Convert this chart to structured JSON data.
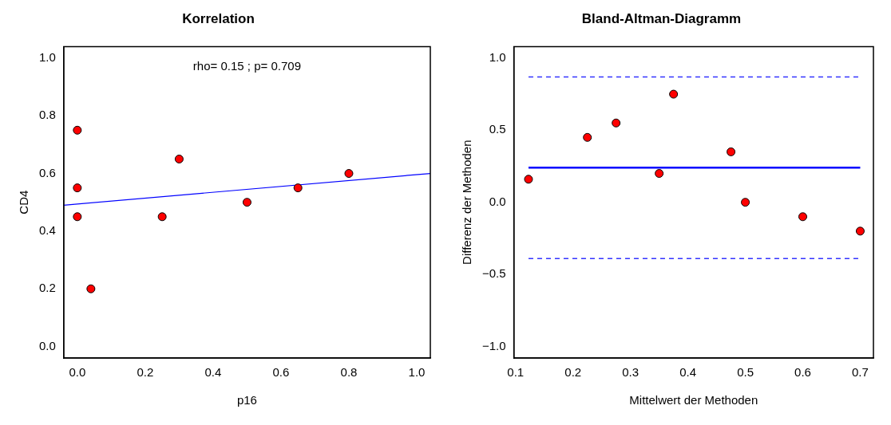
{
  "chart_data": [
    {
      "type": "scatter",
      "title": "Korrelation",
      "xlabel": "p16",
      "ylabel": "CD4",
      "annotations": [
        "rho= 0.15 ; p= 0.709"
      ],
      "xlim": [
        -0.04,
        1.04
      ],
      "ylim": [
        -0.04,
        1.04
      ],
      "xticks": [
        {
          "value": 0,
          "label": "0.0"
        },
        0.2,
        0.4,
        0.6,
        0.8,
        {
          "value": 1,
          "label": "1.0"
        }
      ],
      "yticks": [
        {
          "value": 0,
          "label": "0.0"
        },
        0.2,
        0.4,
        0.6,
        0.8,
        {
          "value": 1,
          "label": "1.0"
        }
      ],
      "grid": false,
      "series": [
        {
          "marker": "circle",
          "color": "#ff0000",
          "x": [
            0,
            0,
            0,
            0.04,
            0.25,
            0.3,
            0.5,
            0.65,
            0.8
          ],
          "values": [
            0.75,
            0.55,
            0.45,
            0.2,
            0.45,
            0.65,
            0.5,
            0.55,
            0.6
          ]
        },
        {
          "type": "line",
          "color": "#0000ff",
          "x": [
            -0.04,
            1.04
          ],
          "values": [
            0.49,
            0.6
          ]
        }
      ]
    },
    {
      "type": "scatter",
      "title": "Bland-Altman-Diagramm",
      "xlabel": "Mittelwert der Methoden",
      "ylabel": "Differenz der Methoden",
      "xlim": [
        0.097,
        0.723
      ],
      "ylim": [
        -1.08,
        1.08
      ],
      "xticks": [
        0.1,
        0.2,
        0.3,
        0.4,
        0.5,
        0.6,
        0.7
      ],
      "yticks": [
        {
          "value": -1,
          "label": "−1.0"
        },
        {
          "value": -0.5,
          "label": "−0.5"
        },
        {
          "value": 0,
          "label": "0.0"
        },
        0.5,
        {
          "value": 1,
          "label": "1.0"
        }
      ],
      "marker": "circle",
      "grid": false,
      "series": [
        {
          "color": "#ff0000",
          "x": [
            0.1225,
            0.225,
            0.275,
            0.35,
            0.375,
            0.475,
            0.5,
            0.6,
            0.7
          ],
          "values": [
            0.16,
            0.45,
            0.55,
            0.2,
            0.75,
            0.35,
            0,
            -0.1,
            -0.2
          ]
        }
      ],
      "ref_lines": [
        {
          "axis": "y",
          "value": 0.24,
          "color": "#0000ff",
          "line_style": "solid"
        },
        {
          "axis": "y",
          "value": 0.87,
          "color": "#3333ff",
          "line_style": "dashed"
        },
        {
          "axis": "y",
          "value": -0.39,
          "color": "#3333ff",
          "line_style": "dashed"
        }
      ]
    }
  ]
}
